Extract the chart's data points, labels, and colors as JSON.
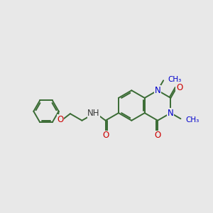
{
  "bg_color": "#e8e8e8",
  "bond_color": "#3a6b34",
  "n_color": "#0000cc",
  "o_color": "#cc0000",
  "line_width": 1.4,
  "font_size": 8.5,
  "xlim": [
    0.0,
    10.0
  ],
  "ylim": [
    1.5,
    8.5
  ]
}
